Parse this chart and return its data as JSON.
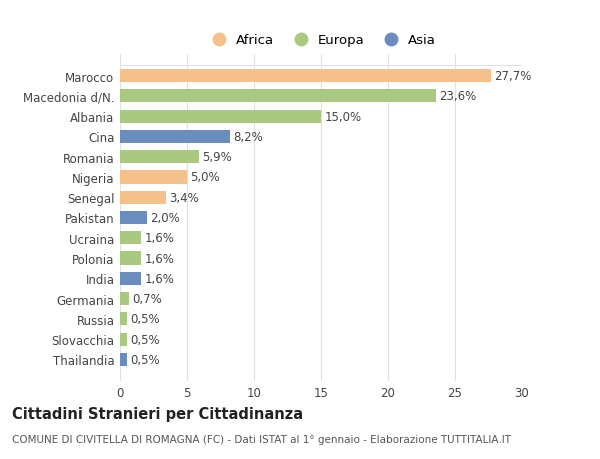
{
  "categories": [
    "Marocco",
    "Macedonia d/N.",
    "Albania",
    "Cina",
    "Romania",
    "Nigeria",
    "Senegal",
    "Pakistan",
    "Ucraina",
    "Polonia",
    "India",
    "Germania",
    "Russia",
    "Slovacchia",
    "Thailandia"
  ],
  "values": [
    27.7,
    23.6,
    15.0,
    8.2,
    5.9,
    5.0,
    3.4,
    2.0,
    1.6,
    1.6,
    1.6,
    0.7,
    0.5,
    0.5,
    0.5
  ],
  "labels": [
    "27,7%",
    "23,6%",
    "15,0%",
    "8,2%",
    "5,9%",
    "5,0%",
    "3,4%",
    "2,0%",
    "1,6%",
    "1,6%",
    "1,6%",
    "0,7%",
    "0,5%",
    "0,5%",
    "0,5%"
  ],
  "colors": [
    "#F5C08A",
    "#A8C97F",
    "#A8C97F",
    "#6B8CBF",
    "#A8C97F",
    "#F5C08A",
    "#F5C08A",
    "#6B8CBF",
    "#A8C97F",
    "#A8C97F",
    "#6B8CBF",
    "#A8C97F",
    "#A8C97F",
    "#A8C97F",
    "#6B8CBF"
  ],
  "legend_labels": [
    "Africa",
    "Europa",
    "Asia"
  ],
  "legend_colors": [
    "#F5C08A",
    "#A8C97F",
    "#6B8CBF"
  ],
  "title": "Cittadini Stranieri per Cittadinanza",
  "subtitle": "COMUNE DI CIVITELLA DI ROMAGNA (FC) - Dati ISTAT al 1° gennaio - Elaborazione TUTTITALIA.IT",
  "xlim": [
    0,
    30
  ],
  "xticks": [
    0,
    5,
    10,
    15,
    20,
    25,
    30
  ],
  "background_color": "#ffffff",
  "plot_bg_color": "#ffffff",
  "grid_color": "#e0e0e0",
  "bar_height": 0.65,
  "label_fontsize": 8.5,
  "tick_fontsize": 8.5,
  "title_fontsize": 10.5,
  "subtitle_fontsize": 7.5
}
